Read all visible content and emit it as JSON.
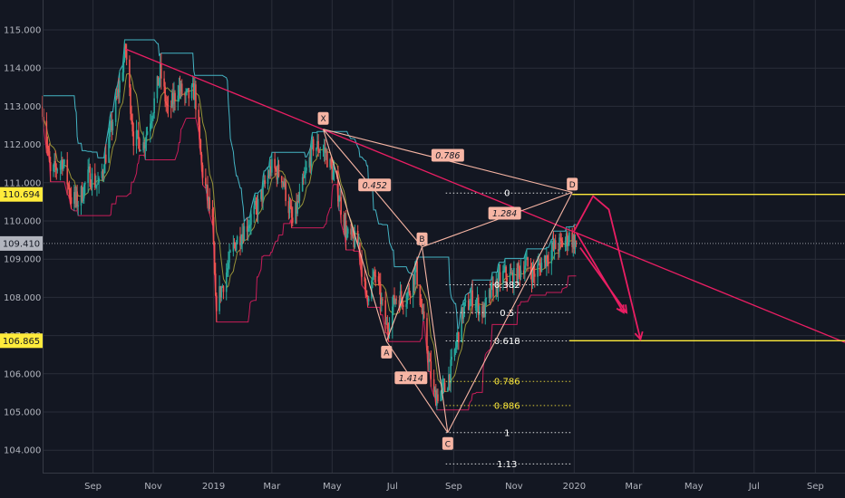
{
  "chart_data": {
    "type": "line",
    "title": "",
    "xlabel": "",
    "ylabel": "",
    "ylim": [
      103.6,
      115.6
    ],
    "x_ticks": [
      "Sep",
      "Nov",
      "2019",
      "Mar",
      "May",
      "Jul",
      "Sep",
      "Nov",
      "2020",
      "Mar",
      "May",
      "Jul",
      "Sep"
    ],
    "y_ticks": [
      "115.000",
      "114.000",
      "113.000",
      "112.000",
      "111.000",
      "110.000",
      "109.000",
      "108.000",
      "107.000",
      "106.000",
      "105.000",
      "104.000"
    ],
    "price_badges": [
      {
        "label": "110.694",
        "value": 110.694,
        "color": "#ffeb3b",
        "text_color": "#131722"
      },
      {
        "label": "109.410",
        "value": 109.41,
        "color": "#b2b5be",
        "text_color": "#131722"
      },
      {
        "label": "106.865",
        "value": 106.865,
        "color": "#ffeb3b",
        "text_color": "#131722"
      }
    ],
    "close_series": [
      [
        "2018-07-12",
        113.0
      ],
      [
        "2018-07-20",
        111.2
      ],
      [
        "2018-08-01",
        111.6
      ],
      [
        "2018-08-10",
        110.6
      ],
      [
        "2018-08-17",
        110.5
      ],
      [
        "2018-08-28",
        111.2
      ],
      [
        "2018-09-07",
        110.9
      ],
      [
        "2018-09-17",
        112.1
      ],
      [
        "2018-09-28",
        113.6
      ],
      [
        "2018-10-04",
        114.5
      ],
      [
        "2018-10-12",
        112.2
      ],
      [
        "2018-10-22",
        112.0
      ],
      [
        "2018-11-01",
        113.0
      ],
      [
        "2018-11-08",
        113.9
      ],
      [
        "2018-11-16",
        112.8
      ],
      [
        "2018-11-26",
        113.5
      ],
      [
        "2018-12-04",
        113.2
      ],
      [
        "2018-12-13",
        113.4
      ],
      [
        "2018-12-20",
        111.4
      ],
      [
        "2018-12-31",
        109.9
      ],
      [
        "2019-01-03",
        107.8
      ],
      [
        "2019-01-10",
        108.3
      ],
      [
        "2019-01-22",
        109.4
      ],
      [
        "2019-02-04",
        109.9
      ],
      [
        "2019-02-15",
        110.4
      ],
      [
        "2019-02-28",
        111.4
      ],
      [
        "2019-03-11",
        111.2
      ],
      [
        "2019-03-22",
        109.9
      ],
      [
        "2019-04-01",
        110.9
      ],
      [
        "2019-04-12",
        112.0
      ],
      [
        "2019-04-24",
        111.8
      ],
      [
        "2019-05-06",
        110.9
      ],
      [
        "2019-05-16",
        109.6
      ],
      [
        "2019-05-28",
        109.4
      ],
      [
        "2019-06-04",
        108.0
      ],
      [
        "2019-06-14",
        108.6
      ],
      [
        "2019-06-25",
        107.2
      ],
      [
        "2019-07-04",
        108.0
      ],
      [
        "2019-07-15",
        108.0
      ],
      [
        "2019-07-25",
        108.7
      ],
      [
        "2019-08-01",
        107.4
      ],
      [
        "2019-08-12",
        105.4
      ],
      [
        "2019-08-23",
        105.6
      ],
      [
        "2019-08-30",
        106.2
      ],
      [
        "2019-09-10",
        107.6
      ],
      [
        "2019-09-20",
        108.0
      ],
      [
        "2019-10-01",
        107.6
      ],
      [
        "2019-10-10",
        108.2
      ],
      [
        "2019-10-22",
        108.6
      ],
      [
        "2019-11-01",
        108.5
      ],
      [
        "2019-11-12",
        108.9
      ],
      [
        "2019-11-21",
        108.6
      ],
      [
        "2019-12-02",
        109.0
      ],
      [
        "2019-12-12",
        109.3
      ],
      [
        "2019-12-20",
        109.4
      ],
      [
        "2019-12-27",
        109.6
      ],
      [
        "2020-01-03",
        109.41
      ]
    ],
    "harmonic_points": [
      {
        "label": "X",
        "date": "2019-04-22",
        "value": 112.4
      },
      {
        "label": "A",
        "date": "2019-06-25",
        "value": 106.85
      },
      {
        "label": "B",
        "date": "2019-07-31",
        "value": 109.32
      },
      {
        "label": "C",
        "date": "2019-08-26",
        "value": 104.46
      },
      {
        "label": "D",
        "date": "2019-12-30",
        "value": 110.75
      }
    ],
    "harmonic_ratios": [
      "0.452",
      "1.414",
      "1.284",
      "0.786"
    ],
    "fib_levels": [
      {
        "ratio": 0,
        "label": "0",
        "value": 110.73,
        "color": "#ffffff"
      },
      {
        "ratio": 0.382,
        "label": "0.382",
        "value": 108.33,
        "color": "#ffffff"
      },
      {
        "ratio": 0.5,
        "label": "0.5",
        "value": 107.6,
        "color": "#ffffff"
      },
      {
        "ratio": 0.618,
        "label": "0.618",
        "value": 106.86,
        "color": "#ffffff"
      },
      {
        "ratio": 0.786,
        "label": "0.786",
        "value": 105.8,
        "color": "#ffeb3b"
      },
      {
        "ratio": 0.886,
        "label": "0.886",
        "value": 105.17,
        "color": "#ffeb3b"
      },
      {
        "ratio": 1,
        "label": "1",
        "value": 104.46,
        "color": "#ffffff"
      },
      {
        "ratio": 1.13,
        "label": "1.13",
        "value": 103.64,
        "color": "#ffffff"
      }
    ],
    "colors": {
      "background": "#131722",
      "grid": "#2a2e39",
      "bull": "#26a69a",
      "bear": "#ef5350",
      "harmonic": "#f7b5a4",
      "trendline": "#e91e63",
      "forecast": "#e91e63",
      "level": "#ffeb3b",
      "upper_channel": "#4dd0e1",
      "lower_channel": "#e91e63",
      "mid_channel": "#a5a03a"
    }
  }
}
